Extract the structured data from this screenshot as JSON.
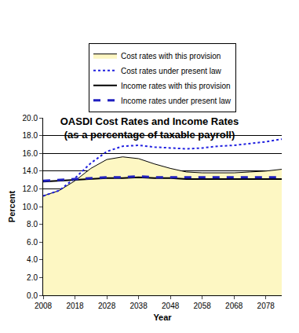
{
  "chart_data": {
    "type": "line",
    "title": "OASDI Cost Rates and Income Rates",
    "subtitle": "(as a percentage of taxable payroll)",
    "x_label": "Year",
    "y_label": "Percent",
    "x": [
      2008,
      2013,
      2018,
      2023,
      2028,
      2033,
      2038,
      2043,
      2048,
      2053,
      2058,
      2063,
      2068,
      2073,
      2078,
      2083
    ],
    "series": [
      {
        "name": "Cost rates with this provision",
        "type": "area",
        "color": "#fdf7c3",
        "line_style": "solid",
        "values": [
          11.2,
          11.8,
          12.9,
          14.3,
          15.3,
          15.6,
          15.4,
          14.8,
          14.3,
          13.9,
          13.8,
          13.8,
          13.8,
          13.9,
          14.0,
          14.2
        ]
      },
      {
        "name": "Cost rates under present law",
        "type": "line",
        "color": "#2020e0",
        "line_style": "dot",
        "values": [
          11.2,
          11.8,
          13.2,
          14.9,
          16.2,
          16.8,
          16.9,
          16.7,
          16.6,
          16.5,
          16.6,
          16.8,
          16.9,
          17.1,
          17.3,
          17.6
        ]
      },
      {
        "name": "Income rates with this provision",
        "type": "line",
        "color": "#000000",
        "line_style": "solid",
        "values": [
          12.8,
          12.9,
          13.0,
          13.1,
          13.2,
          13.2,
          13.3,
          13.2,
          13.2,
          13.1,
          13.1,
          13.1,
          13.1,
          13.1,
          13.1,
          13.1
        ]
      },
      {
        "name": "Income rates under present law",
        "type": "line",
        "color": "#2020c0",
        "line_style": "dash",
        "values": [
          12.9,
          13.0,
          13.1,
          13.2,
          13.3,
          13.3,
          13.4,
          13.3,
          13.3,
          13.3,
          13.3,
          13.3,
          13.3,
          13.3,
          13.3,
          13.3
        ]
      }
    ],
    "xlim": [
      2008,
      2083
    ],
    "xticks": [
      2008,
      2018,
      2028,
      2038,
      2048,
      2058,
      2068,
      2078
    ],
    "ylim": [
      0,
      20
    ],
    "yticks": [
      {
        "value": 0,
        "label": "0.0"
      },
      {
        "value": 2,
        "label": "2.0"
      },
      {
        "value": 4,
        "label": "4.0"
      },
      {
        "value": 6,
        "label": "6.0"
      },
      {
        "value": 8,
        "label": "8.0"
      },
      {
        "value": 10,
        "label": "10.0"
      },
      {
        "value": 12,
        "label": "12.0"
      },
      {
        "value": 14,
        "label": "14.0"
      },
      {
        "value": 16,
        "label": "16.0"
      },
      {
        "value": 18,
        "label": "18.0"
      },
      {
        "value": 20,
        "label": "20.0"
      }
    ],
    "grid": true,
    "legend": "top"
  }
}
